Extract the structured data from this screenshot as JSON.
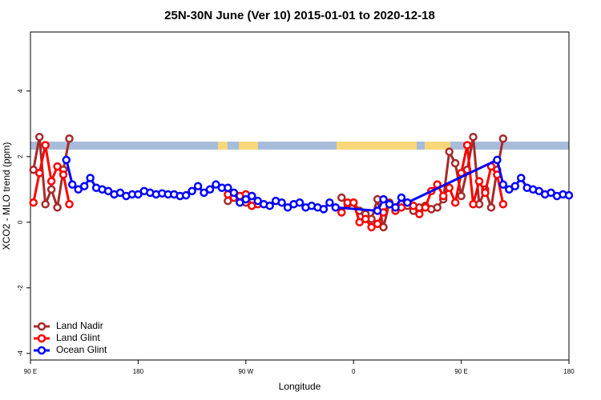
{
  "chart_data": {
    "type": "line",
    "title": "25N-30N June (Ver 10)   2015-01-01 to 2020-12-18",
    "xlabel": "Longitude",
    "ylabel": "XCO2 - MLO trend (ppm)",
    "xlim": [
      90,
      540
    ],
    "xticks": [
      {
        "value": 90,
        "label": "90 E"
      },
      {
        "value": 180,
        "label": "180"
      },
      {
        "value": 270,
        "label": "90 W"
      },
      {
        "value": 360,
        "label": "0"
      },
      {
        "value": 450,
        "label": "90 E"
      },
      {
        "value": 540,
        "label": "180"
      }
    ],
    "ylim": [
      -4.2,
      5.8
    ],
    "yticks": [
      -4,
      -2,
      0,
      2,
      4
    ],
    "grid": false,
    "legend": "bottom-left",
    "series": [
      {
        "name": "Land Nadir",
        "color": "#a52a2a",
        "x": [
          92.5,
          97.5,
          102.5,
          107.5,
          112.5,
          117.5,
          122.5,
          190,
          255,
          260,
          265,
          270,
          275,
          280,
          310,
          350,
          355,
          360,
          365,
          370,
          375,
          380,
          385,
          390,
          395,
          400,
          405,
          410,
          415,
          420,
          425,
          430,
          435,
          440,
          445,
          450,
          455,
          460,
          465,
          470,
          475,
          480,
          485
        ],
        "values": [
          1.6,
          2.6,
          0.55,
          1.0,
          0.45,
          1.6,
          2.55,
          null,
          0.65,
          0.75,
          0.7,
          0.6,
          0.8,
          0.6,
          null,
          0.75,
          0.55,
          0.6,
          0.35,
          0.25,
          0.1,
          0.7,
          -0.15,
          0.6,
          0.45,
          0.55,
          0.5,
          0.35,
          0.45,
          0.5,
          0.4,
          0.45,
          0.7,
          2.15,
          1.8,
          0.8,
          1.6,
          2.6,
          0.55,
          1.0,
          0.45,
          1.6,
          2.55
        ]
      },
      {
        "name": "Land Glint",
        "color": "#ff0000",
        "x": [
          92.5,
          97.5,
          102.5,
          107.5,
          112.5,
          117.5,
          122.5,
          190,
          255,
          260,
          265,
          270,
          275,
          280,
          310,
          350,
          355,
          360,
          365,
          370,
          375,
          380,
          385,
          390,
          395,
          400,
          405,
          410,
          415,
          420,
          425,
          430,
          435,
          440,
          445,
          450,
          455,
          460,
          465,
          470,
          475,
          480,
          485
        ],
        "values": [
          0.6,
          1.5,
          2.35,
          1.25,
          1.7,
          1.45,
          0.55,
          null,
          0.85,
          0.75,
          0.8,
          0.85,
          0.5,
          0.55,
          null,
          0.3,
          0.6,
          0.6,
          0.0,
          0.1,
          -0.15,
          -0.05,
          0.3,
          0.55,
          0.35,
          0.45,
          0.6,
          0.5,
          0.25,
          0.45,
          0.95,
          1.15,
          0.8,
          1.05,
          0.6,
          1.5,
          2.35,
          0.55,
          1.25,
          0.9,
          1.7,
          1.45,
          0.55
        ]
      },
      {
        "name": "Ocean Glint",
        "color": "#0000ff",
        "x": [
          120,
          125,
          130,
          135,
          140,
          145,
          150,
          155,
          160,
          165,
          170,
          175,
          180,
          185,
          190,
          195,
          200,
          205,
          210,
          215,
          220,
          225,
          230,
          235,
          240,
          245,
          250,
          255,
          260,
          265,
          270,
          275,
          280,
          285,
          290,
          295,
          300,
          305,
          310,
          315,
          320,
          325,
          330,
          335,
          340,
          345,
          380,
          385,
          390,
          395,
          400,
          405,
          480,
          485,
          490,
          495,
          500,
          505,
          510,
          515,
          520,
          525,
          530,
          535,
          540
        ],
        "values": [
          1.9,
          1.15,
          1.0,
          1.1,
          1.35,
          1.05,
          1.0,
          0.95,
          0.85,
          0.9,
          0.8,
          0.85,
          0.85,
          0.95,
          0.9,
          0.85,
          0.88,
          0.85,
          0.85,
          0.8,
          0.82,
          0.95,
          1.1,
          0.9,
          1.0,
          1.15,
          1.05,
          1.05,
          0.9,
          0.6,
          0.7,
          0.8,
          0.65,
          0.55,
          0.5,
          0.65,
          0.6,
          0.45,
          0.55,
          0.6,
          0.45,
          0.5,
          0.45,
          0.4,
          0.6,
          0.45,
          0.35,
          0.7,
          0.55,
          0.45,
          0.75,
          0.6,
          1.9,
          1.15,
          1.0,
          1.1,
          1.35,
          1.05,
          1.0,
          0.95,
          0.85,
          0.9,
          0.8,
          0.85,
          0.82
        ]
      }
    ]
  }
}
